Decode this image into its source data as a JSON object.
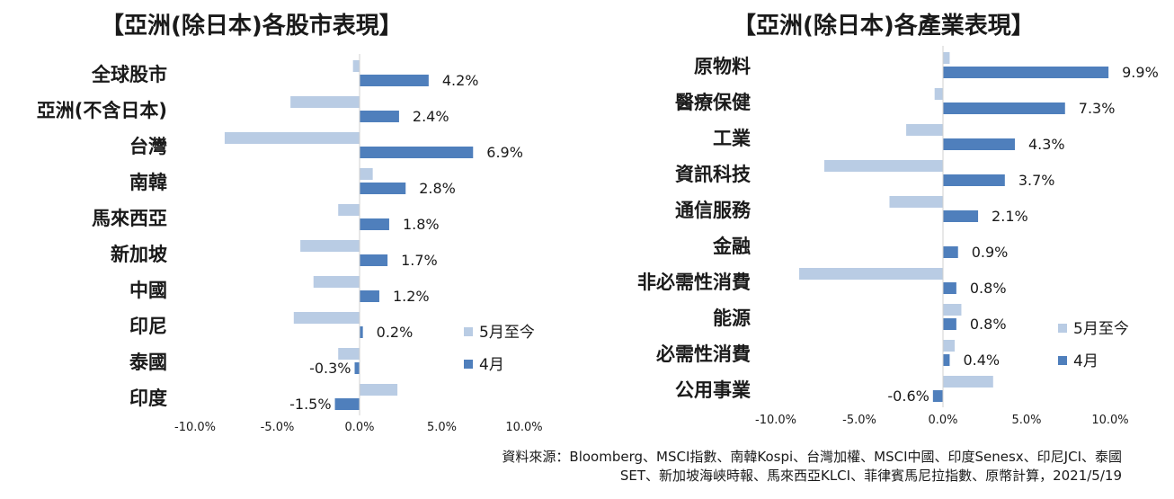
{
  "source_lines": [
    "資料來源：Bloomberg、MSCI指數、南韓Kospi、台灣加權、MSCI中國、印度Senesx、印尼JCI、泰國",
    "SET、新加坡海峽時報、馬來西亞KLCI、菲律賓馬尼拉指數、原幣計算，2021/5/19"
  ],
  "chart_data": [
    {
      "type": "bar",
      "orientation": "horizontal",
      "title": "【亞洲(除日本)各股市表現】",
      "categories": [
        "全球股市",
        "亞洲(不含日本)",
        "台灣",
        "南韓",
        "馬來西亞",
        "新加坡",
        "中國",
        "印尼",
        "泰國",
        "印度"
      ],
      "series": [
        {
          "name": "5月至今",
          "color": "#b9cce4",
          "values": [
            -0.4,
            -4.2,
            -8.2,
            0.8,
            -1.3,
            -3.6,
            -2.8,
            -4.0,
            -1.3,
            2.3
          ]
        },
        {
          "name": "4月",
          "color": "#4f7fbc",
          "values": [
            4.2,
            2.4,
            6.9,
            2.8,
            1.8,
            1.7,
            1.2,
            0.2,
            -0.3,
            -1.5
          ],
          "labels": [
            "4.2%",
            "2.4%",
            "6.9%",
            "2.8%",
            "1.8%",
            "1.7%",
            "1.2%",
            "0.2%",
            "-0.3%",
            "-1.5%"
          ]
        }
      ],
      "xlim": [
        -10,
        10
      ],
      "xticks": [
        "-10.0%",
        "-5.0%",
        "0.0%",
        "5.0%",
        "10.0%"
      ],
      "legend": "bottom-right",
      "grid": false
    },
    {
      "type": "bar",
      "orientation": "horizontal",
      "title": "【亞洲(除日本)各產業表現】",
      "categories": [
        "原物料",
        "醫療保健",
        "工業",
        "資訊科技",
        "通信服務",
        "金融",
        "非必需性消費",
        "能源",
        "必需性消費",
        "公用事業"
      ],
      "series": [
        {
          "name": "5月至今",
          "color": "#b9cce4",
          "values": [
            0.4,
            -0.5,
            -2.2,
            -7.1,
            -3.2,
            0.0,
            -8.6,
            1.1,
            0.7,
            3.0
          ]
        },
        {
          "name": "4月",
          "color": "#4f7fbc",
          "values": [
            9.9,
            7.3,
            4.3,
            3.7,
            2.1,
            0.9,
            0.8,
            0.8,
            0.4,
            -0.6
          ],
          "labels": [
            "9.9%",
            "7.3%",
            "4.3%",
            "3.7%",
            "2.1%",
            "0.9%",
            "0.8%",
            "0.8%",
            "0.4%",
            "-0.6%"
          ]
        }
      ],
      "xlim": [
        -10,
        10
      ],
      "xticks": [
        "-10.0%",
        "-5.0%",
        "0.0%",
        "5.0%",
        "10.0%"
      ],
      "legend": "bottom-right",
      "grid": false
    }
  ]
}
